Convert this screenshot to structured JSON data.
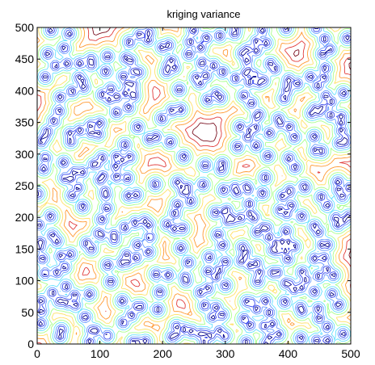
{
  "chart_data": {
    "type": "contour",
    "title": "kriging variance",
    "xlabel": "",
    "ylabel": "",
    "xlim": [
      0,
      500
    ],
    "ylim": [
      0,
      500
    ],
    "x_ticks": [
      0,
      100,
      200,
      300,
      400,
      500
    ],
    "y_ticks": [
      0,
      50,
      100,
      150,
      200,
      250,
      300,
      350,
      400,
      450,
      500
    ],
    "grid": false,
    "legend": "none",
    "contour_colors": [
      "#00008b",
      "#3344ee",
      "#6699ff",
      "#66e0ff",
      "#a8ff8c",
      "#ffe066",
      "#ff9933",
      "#e03a3a",
      "#7a1020"
    ]
  }
}
